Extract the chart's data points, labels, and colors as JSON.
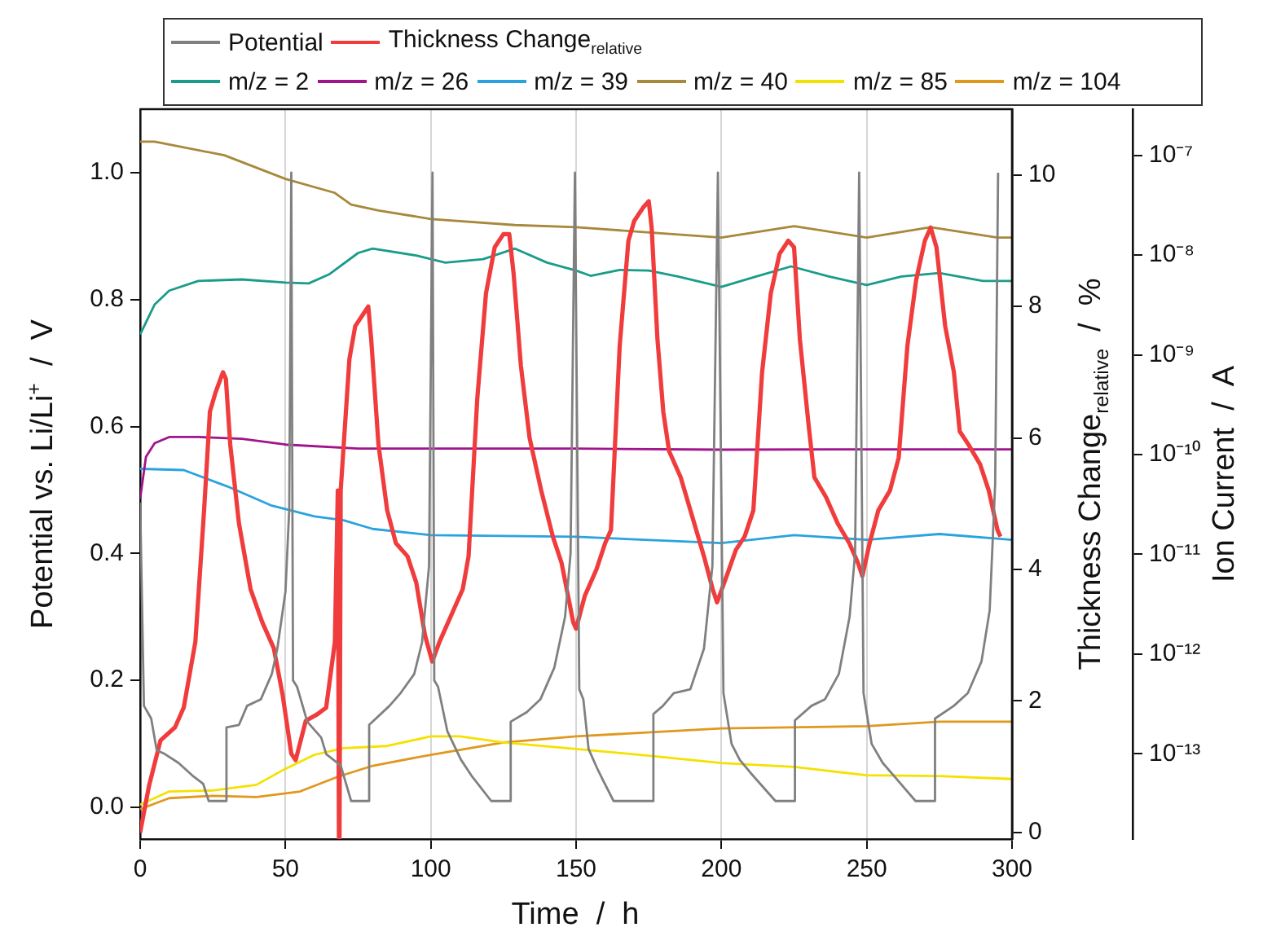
{
  "chart_data": {
    "type": "line",
    "xlabel": "Time  /  h",
    "ylabel": "Potential vs. Li/Li$^{+}$  /  V",
    "y2label": "Thickness Change$_{relative}$  /  %",
    "y3label": "Ion Current  /  A",
    "xlim": [
      0,
      300
    ],
    "xticks": [
      0,
      50,
      100,
      150,
      200,
      250,
      300
    ],
    "ylim": [
      -0.05,
      1.1
    ],
    "yticks": [
      {
        "value": 0,
        "label": "0.0"
      },
      {
        "value": 0.2,
        "label": "0.2"
      },
      {
        "value": 0.4,
        "label": "0.4"
      },
      {
        "value": 0.6,
        "label": "0.6"
      },
      {
        "value": 0.8,
        "label": "0.8"
      },
      {
        "value": 1,
        "label": "1.0"
      }
    ],
    "y2lim": [
      -0.1,
      11
    ],
    "y2ticks": [
      0,
      2,
      4,
      6,
      8,
      10
    ],
    "y3lim": [
      1.4e-14,
      2.9e-07
    ],
    "y3ticks": [
      {
        "value": 1e-07,
        "label": "10⁻⁷"
      },
      {
        "value": 1e-08,
        "label": "10⁻⁸"
      },
      {
        "value": 1e-09,
        "label": "10⁻⁹"
      },
      {
        "value": 1e-10,
        "label": "10⁻¹⁰"
      },
      {
        "value": 1e-11,
        "label": "10⁻¹¹"
      },
      {
        "value": 1e-12,
        "label": "10⁻¹²"
      },
      {
        "value": 1e-13,
        "label": "10⁻¹³"
      }
    ],
    "log": "y3",
    "grid": "x",
    "legend": "top",
    "marker": "none",
    "line_style": "solid",
    "series": [
      {
        "name": "Potential",
        "color": "#808080",
        "x": [
          0,
          1.3,
          3.8,
          5.7,
          8.5,
          13.2,
          18,
          21.7,
          23.6,
          29.6,
          29.7,
          34,
          36.8,
          41.5,
          45.3,
          47.2,
          50,
          51.3,
          52,
          52.6,
          54,
          57.5,
          62.3,
          64,
          69,
          72.6,
          78.7,
          78.8,
          85.8,
          89.6,
          94.3,
          97,
          99.4,
          100.6,
          101.2,
          102.5,
          105.7,
          110.4,
          114,
          120.8,
          127.4,
          127.5,
          133,
          137.7,
          142.5,
          146.2,
          148.1,
          149.6,
          151.1,
          152.5,
          154.3,
          157.2,
          159,
          162.9,
          176.5,
          176.6,
          179.9,
          183.6,
          189.3,
          194,
          196.9,
          198.8,
          200.7,
          203.5,
          206.3,
          210.1,
          218.6,
          225.2,
          225.3,
          231,
          235.6,
          240.4,
          244.1,
          246,
          247.4,
          248.9,
          251.7,
          255.5,
          259.3,
          266.8,
          273.4,
          273.5,
          280,
          284.8,
          289.5,
          292.3,
          294.2,
          295.2
        ],
        "values": [
          0.48,
          0.16,
          0.14,
          0.09,
          0.084,
          0.07,
          0.05,
          0.037,
          0.01,
          0.01,
          0.126,
          0.13,
          0.16,
          0.17,
          0.21,
          0.25,
          0.34,
          0.47,
          1.0,
          0.2,
          0.19,
          0.135,
          0.11,
          0.084,
          0.066,
          0.01,
          0.01,
          0.13,
          0.16,
          0.18,
          0.21,
          0.26,
          0.38,
          1.0,
          0.2,
          0.19,
          0.12,
          0.075,
          0.05,
          0.01,
          0.01,
          0.135,
          0.15,
          0.17,
          0.22,
          0.3,
          0.4,
          1.0,
          0.186,
          0.17,
          0.092,
          0.062,
          0.045,
          0.01,
          0.01,
          0.147,
          0.16,
          0.18,
          0.186,
          0.25,
          0.38,
          1.0,
          0.18,
          0.1,
          0.075,
          0.054,
          0.01,
          0.01,
          0.137,
          0.16,
          0.17,
          0.21,
          0.3,
          0.4,
          1.0,
          0.18,
          0.1,
          0.07,
          0.05,
          0.01,
          0.01,
          0.14,
          0.16,
          0.18,
          0.23,
          0.31,
          0.51,
          1.0
        ]
      },
      {
        "name": "Thickness Change$_{relative}$",
        "color": "#f03c3c",
        "axis": "y2",
        "x": [
          0,
          3,
          7,
          12,
          15,
          19,
          22,
          24,
          26,
          28.5,
          29.5,
          31,
          34,
          38,
          42,
          46,
          49,
          52,
          53.5,
          57,
          61,
          64,
          67,
          68,
          68.4,
          68.6,
          69,
          72,
          74,
          77,
          78.5,
          79.5,
          82,
          85,
          88,
          92,
          95,
          98,
          100.5,
          103,
          107,
          111,
          113,
          116,
          119,
          122,
          125,
          127,
          128.5,
          131,
          134,
          138,
          142,
          145,
          149,
          150,
          153,
          157,
          160,
          162,
          165,
          168,
          170,
          173,
          175,
          176,
          178,
          180,
          182,
          186,
          190,
          194,
          197,
          198.5,
          201,
          205,
          208,
          211,
          214,
          217,
          220,
          223,
          225,
          227,
          230,
          232,
          236,
          240,
          244,
          247,
          248.5,
          251,
          254,
          258,
          261,
          264,
          267,
          270,
          272,
          274,
          277,
          280,
          282,
          285,
          289,
          292,
          295,
          296
        ],
        "values": [
          0,
          0.7,
          1.4,
          1.6,
          1.9,
          2.9,
          4.9,
          6.4,
          6.7,
          7.0,
          6.9,
          5.9,
          4.7,
          3.7,
          3.2,
          2.8,
          2.1,
          1.2,
          1.1,
          1.7,
          1.8,
          1.9,
          2.9,
          5.2,
          -0.1,
          -0.1,
          5.2,
          7.2,
          7.7,
          7.9,
          8.0,
          7.5,
          5.9,
          4.9,
          4.4,
          4.2,
          3.8,
          3.0,
          2.6,
          2.9,
          3.3,
          3.7,
          4.2,
          6.6,
          8.2,
          8.9,
          9.1,
          9.1,
          8.5,
          7.1,
          6.0,
          5.2,
          4.5,
          4.1,
          3.2,
          3.1,
          3.6,
          4.0,
          4.4,
          4.6,
          7.4,
          9.0,
          9.3,
          9.5,
          9.6,
          9.2,
          7.5,
          6.4,
          5.8,
          5.4,
          4.8,
          4.2,
          3.7,
          3.5,
          3.8,
          4.3,
          4.5,
          4.9,
          7.0,
          8.2,
          8.8,
          9.0,
          8.9,
          7.5,
          6.2,
          5.4,
          5.1,
          4.7,
          4.4,
          4.1,
          3.9,
          4.4,
          4.9,
          5.2,
          5.7,
          7.4,
          8.4,
          9.0,
          9.2,
          8.9,
          7.7,
          7.0,
          6.1,
          5.9,
          5.6,
          5.2,
          4.6,
          4.5
        ]
      },
      {
        "name": "m/z = 2",
        "color": "#1a9c8a",
        "axis": "y3",
        "x": [
          0,
          5,
          10,
          20,
          35,
          50,
          58,
          65,
          75,
          80,
          95,
          105,
          118,
          129,
          140,
          150,
          155,
          165,
          175,
          185,
          200,
          212,
          224,
          237,
          250,
          262,
          275,
          290,
          300
        ],
        "values": [
          1.6e-09,
          3.2e-09,
          4.4e-09,
          5.5e-09,
          5.7e-09,
          5.3e-09,
          5.2e-09,
          6.4e-09,
          1.05e-08,
          1.16e-08,
          9.9e-09,
          8.4e-09,
          9.1e-09,
          1.16e-08,
          8.4e-09,
          7e-09,
          6.2e-09,
          7.1e-09,
          7e-09,
          6.1e-09,
          4.8e-09,
          6.1e-09,
          7.7e-09,
          6.1e-09,
          5e-09,
          6.1e-09,
          6.6e-09,
          5.5e-09,
          5.5e-09
        ]
      },
      {
        "name": "m/z = 26",
        "color": "#a0148c",
        "axis": "y3",
        "x": [
          0,
          2,
          5,
          10,
          20,
          35,
          50,
          75,
          150,
          200,
          250,
          300
        ],
        "values": [
          3.6e-11,
          9.5e-11,
          1.3e-10,
          1.5e-10,
          1.5e-10,
          1.44e-10,
          1.26e-10,
          1.15e-10,
          1.15e-10,
          1.12e-10,
          1.13e-10,
          1.13e-10
        ]
      },
      {
        "name": "m/z = 39",
        "color": "#29a3e0",
        "axis": "y3",
        "x": [
          0,
          15,
          30,
          45,
          60,
          70,
          80,
          100,
          150,
          200,
          225,
          250,
          275,
          300
        ],
        "values": [
          7.2e-11,
          7e-11,
          4.8e-11,
          3.1e-11,
          2.4e-11,
          2.2e-11,
          1.8e-11,
          1.56e-11,
          1.5e-11,
          1.3e-11,
          1.56e-11,
          1.4e-11,
          1.6e-11,
          1.4e-11
        ]
      },
      {
        "name": "m/z = 40",
        "color": "#a8883a",
        "axis": "y3",
        "x": [
          0,
          5,
          29,
          50,
          67,
          72.6,
          82,
          100,
          129,
          150,
          200,
          225,
          250,
          272,
          295,
          300
        ],
        "values": [
          1.37e-07,
          1.37e-07,
          1e-07,
          5.8e-08,
          4.2e-08,
          3.2e-08,
          2.8e-08,
          2.3e-08,
          2e-08,
          1.9e-08,
          1.5e-08,
          1.95e-08,
          1.5e-08,
          1.9e-08,
          1.5e-08,
          1.5e-08
        ]
      },
      {
        "name": "m/z = 85",
        "color": "#f5e100",
        "axis": "y3",
        "x": [
          0,
          10,
          25,
          40,
          50,
          60,
          70,
          85,
          100,
          110,
          125,
          150,
          175,
          200,
          225,
          250,
          275,
          300
        ],
        "values": [
          3.1e-14,
          4.2e-14,
          4.3e-14,
          4.9e-14,
          7.1e-14,
          9.8e-14,
          1.14e-13,
          1.2e-13,
          1.5e-13,
          1.5e-13,
          1.3e-13,
          1.12e-13,
          9.6e-14,
          8.1e-14,
          7.4e-14,
          6.1e-14,
          6e-14,
          5.6e-14
        ]
      },
      {
        "name": "m/z = 104",
        "color": "#e0981e",
        "axis": "y3",
        "x": [
          0,
          10,
          25,
          40,
          55,
          68,
          80,
          100,
          125,
          150,
          200,
          250,
          275,
          300
        ],
        "values": [
          2.8e-14,
          3.6e-14,
          3.8e-14,
          3.7e-14,
          4.2e-14,
          5.9e-14,
          7.6e-14,
          9.8e-14,
          1.3e-13,
          1.5e-13,
          1.8e-13,
          1.9e-13,
          2.1e-13,
          2.1e-13
        ]
      }
    ]
  }
}
